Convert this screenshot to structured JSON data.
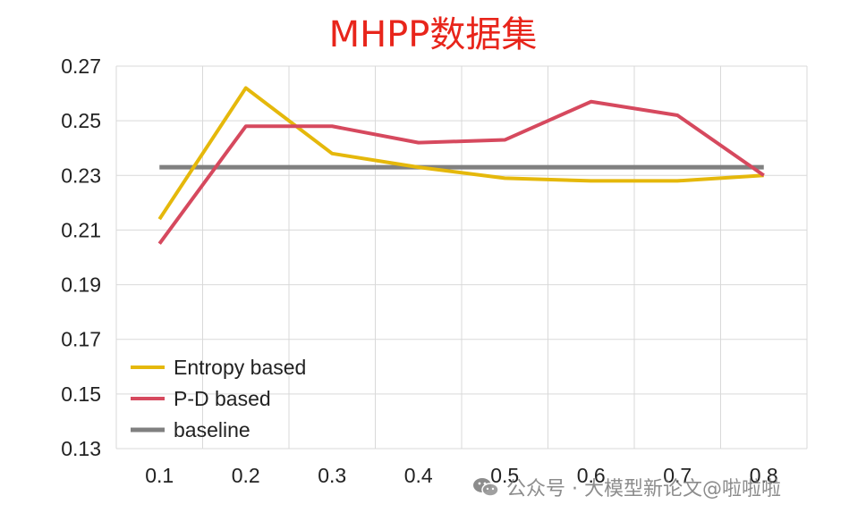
{
  "chart_data": {
    "type": "line",
    "title": "MHPP数据集",
    "x": [
      "0.1",
      "0.2",
      "0.3",
      "0.4",
      "0.5",
      "0.6",
      "0.7",
      "0.8"
    ],
    "ylim": [
      0.13,
      0.27
    ],
    "yticks": [
      "0.27",
      "0.25",
      "0.23",
      "0.21",
      "0.19",
      "0.17",
      "0.15",
      "0.13"
    ],
    "grid": true,
    "legend_position": "bottom-left",
    "series": [
      {
        "name": "Entropy based",
        "color": "#E5B80B",
        "values": [
          0.214,
          0.262,
          0.238,
          0.233,
          0.229,
          0.228,
          0.228,
          0.23
        ]
      },
      {
        "name": "P-D based",
        "color": "#D6495E",
        "values": [
          0.205,
          0.248,
          0.248,
          0.242,
          0.243,
          0.257,
          0.252,
          0.23
        ]
      },
      {
        "name": "baseline",
        "color": "#808080",
        "values": [
          0.233,
          0.233,
          0.233,
          0.233,
          0.233,
          0.233,
          0.233,
          0.233
        ]
      }
    ]
  },
  "colors": {
    "title": "#E8251B",
    "grid": "#d9d9d9",
    "axis_text": "#222222"
  },
  "watermark": {
    "icon": "wechat-icon",
    "text": "公众号 · 大模型新论文@啦啦啦"
  }
}
